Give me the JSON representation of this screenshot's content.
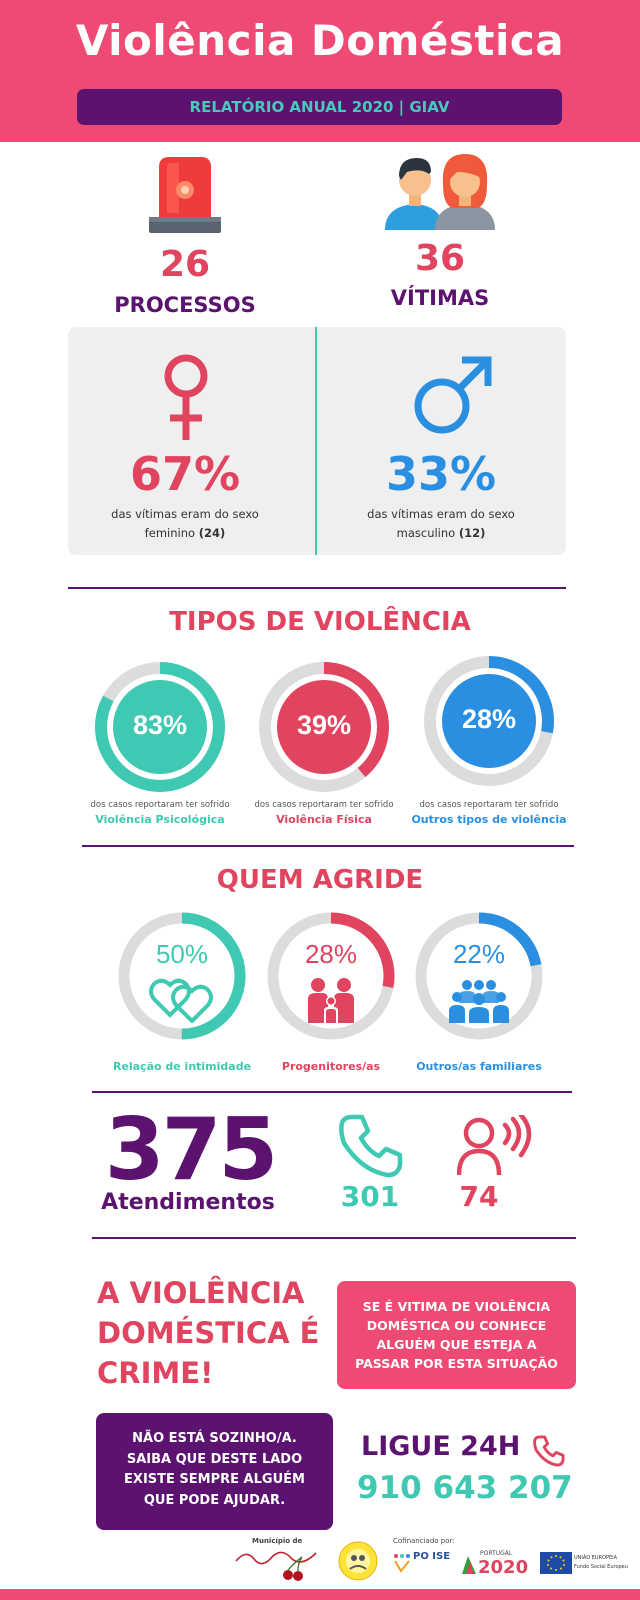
{
  "header": {
    "title": "Violência Doméstica",
    "subtitle": "RELATÓRIO ANUAL 2020 | GIAV",
    "bg_color": "#ef4a73",
    "banner_color": "#5c1370"
  },
  "summary": {
    "processos": {
      "value": "26",
      "label": "PROCESSOS",
      "icon": "siren-icon"
    },
    "vitimas": {
      "value": "36",
      "label": "VÍTIMAS",
      "icon": "people-icon"
    }
  },
  "gender": {
    "female": {
      "percent": "67%",
      "text1": "das vítimas eram do sexo",
      "text2": "feminino",
      "count": "(24)",
      "color": "#e0445f",
      "icon": "female-symbol-icon"
    },
    "male": {
      "percent": "33%",
      "text1": "das vítimas eram do sexo",
      "text2": "masculino",
      "count": "(12)",
      "color": "#2a8fe0",
      "icon": "male-symbol-icon"
    }
  },
  "tipos": {
    "title": "TIPOS DE VIOLÊNCIA",
    "items": [
      {
        "percent": "83%",
        "value": 83,
        "caption_top": "dos casos reportaram ter sofrido",
        "caption": "Violência Psicológica",
        "color": "#3fc9b2"
      },
      {
        "percent": "39%",
        "value": 39,
        "caption_top": "dos casos reportaram ter sofrido",
        "caption": "Violência Física",
        "color": "#e0445f"
      },
      {
        "percent": "28%",
        "value": 28,
        "caption_top": "dos casos reportaram ter sofrido",
        "caption": "Outros tipos de violência",
        "color": "#2a8fe0"
      }
    ]
  },
  "quem": {
    "title": "QUEM AGRIDE",
    "items": [
      {
        "percent": "50%",
        "value": 50,
        "caption": "Relação de intimidade",
        "color": "#3fc9b2",
        "icon": "hearts-icon"
      },
      {
        "percent": "28%",
        "value": 28,
        "caption": "Progenitores/as",
        "color": "#e0445f",
        "icon": "family-icon"
      },
      {
        "percent": "22%",
        "value": 22,
        "caption": "Outros/as familiares",
        "color": "#2a8fe0",
        "icon": "group-icon"
      }
    ]
  },
  "atendimentos": {
    "total": "375",
    "label": "Atendimentos",
    "phone": {
      "value": "301",
      "icon": "phone-icon"
    },
    "presencial": {
      "value": "74",
      "icon": "person-speaking-icon"
    }
  },
  "crime": {
    "line1": "A VIOLÊNCIA",
    "line2": "DOMÉSTICA É",
    "line3": "CRIME!"
  },
  "pinkbox": {
    "line1": "SE É VITIMA DE VIOLÊNCIA",
    "line2": "DOMÉSTICA OU CONHECE",
    "line3": "ALGUÉM QUE ESTEJA A",
    "line4": "PASSAR POR ESTA SITUAÇÃO"
  },
  "purplebox": {
    "line1": "NÃO ESTÁ SOZINHO/A.",
    "line2": "SAIBA QUE DESTE LADO",
    "line3": "EXISTE SEMPRE ALGUÉM",
    "line4": "QUE PODE AJUDAR."
  },
  "contact": {
    "ligue": "LIGUE 24H",
    "number": "910 643 207"
  },
  "footer": {
    "municipio": "Município de",
    "cofinanciado": "Cofinanciado por:",
    "poise": "PO ISE",
    "portugal": "PORTUGAL",
    "p2020": "2020",
    "ue": "UNIÃO EUROPEIA",
    "fundo": "Fundo Social Europeu"
  }
}
